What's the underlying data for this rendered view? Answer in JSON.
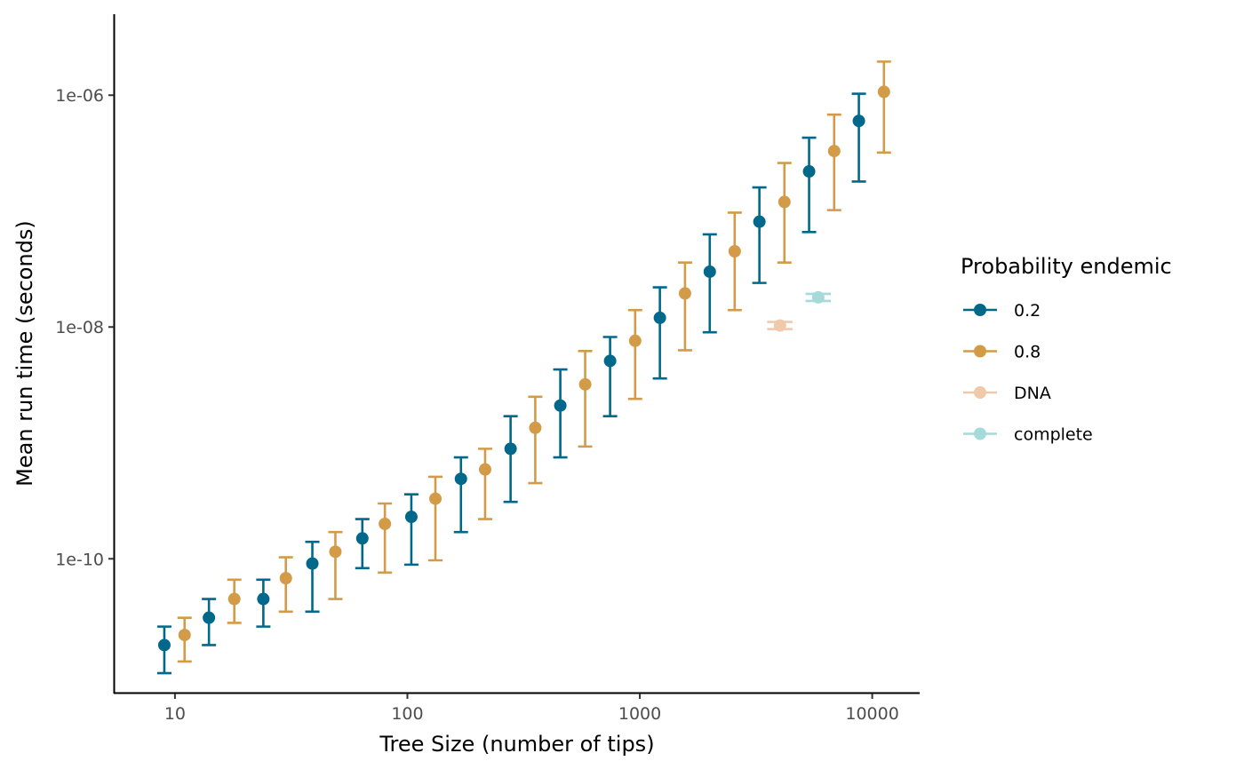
{
  "chart_data": {
    "type": "scatter",
    "title": "",
    "xlabel": "Tree Size (number of tips)",
    "ylabel": "Mean run time (seconds)",
    "x_scale": "log10",
    "y_scale": "log10",
    "xlim": [
      5.5,
      16000
    ],
    "ylim": [
      7e-12,
      5e-06
    ],
    "x_ticks": [
      10,
      100,
      1000,
      10000
    ],
    "x_tick_labels": [
      "10",
      "100",
      "1000",
      "10000"
    ],
    "y_ticks": [
      1e-10,
      1e-08,
      1e-06
    ],
    "y_tick_labels": [
      "1e-10",
      "1e-08",
      "1e-06"
    ],
    "grid": false,
    "legend": {
      "title": "Probability endemic",
      "position": "right",
      "entries": [
        {
          "label": "0.2",
          "color": "#00688B"
        },
        {
          "label": "0.8",
          "color": "#D39B48"
        },
        {
          "label": "DNA",
          "color": "#F0C9AA"
        },
        {
          "label": "complete",
          "color": "#A5DADA"
        }
      ]
    },
    "series": [
      {
        "name": "0.2",
        "color": "#00688B",
        "points": [
          {
            "x": 9,
            "y": 1.8e-11,
            "ymin": 1.03e-11,
            "ymax": 2.6e-11
          },
          {
            "x": 14,
            "y": 3.1e-11,
            "ymin": 1.8e-11,
            "ymax": 4.5e-11
          },
          {
            "x": 24,
            "y": 4.5e-11,
            "ymin": 2.6e-11,
            "ymax": 6.6e-11
          },
          {
            "x": 39,
            "y": 9.1e-11,
            "ymin": 3.5e-11,
            "ymax": 1.4e-10
          },
          {
            "x": 64,
            "y": 1.5e-10,
            "ymin": 8.3e-11,
            "ymax": 2.2e-10
          },
          {
            "x": 104,
            "y": 2.3e-10,
            "ymin": 8.9e-11,
            "ymax": 3.6e-10
          },
          {
            "x": 170,
            "y": 4.9e-10,
            "ymin": 1.7e-10,
            "ymax": 7.5e-10
          },
          {
            "x": 278,
            "y": 8.9e-10,
            "ymin": 3.1e-10,
            "ymax": 1.7e-09
          },
          {
            "x": 455,
            "y": 2.1e-09,
            "ymin": 7.5e-10,
            "ymax": 4.3e-09
          },
          {
            "x": 745,
            "y": 5.1e-09,
            "ymin": 1.7e-09,
            "ymax": 8.2e-09
          },
          {
            "x": 1220,
            "y": 1.2e-08,
            "ymin": 3.6e-09,
            "ymax": 2.2e-08
          },
          {
            "x": 2000,
            "y": 3e-08,
            "ymin": 9e-09,
            "ymax": 6.3e-08
          },
          {
            "x": 3270,
            "y": 8.1e-08,
            "ymin": 2.4e-08,
            "ymax": 1.6e-07
          },
          {
            "x": 5350,
            "y": 2.2e-07,
            "ymin": 6.6e-08,
            "ymax": 4.3e-07
          },
          {
            "x": 8760,
            "y": 6e-07,
            "ymin": 1.8e-07,
            "ymax": 1.03e-06
          }
        ]
      },
      {
        "name": "0.8",
        "color": "#D39B48",
        "points": [
          {
            "x": 11,
            "y": 2.2e-11,
            "ymin": 1.3e-11,
            "ymax": 3.1e-11
          },
          {
            "x": 18,
            "y": 4.5e-11,
            "ymin": 2.8e-11,
            "ymax": 6.6e-11
          },
          {
            "x": 30,
            "y": 6.8e-11,
            "ymin": 3.5e-11,
            "ymax": 1.03e-10
          },
          {
            "x": 49,
            "y": 1.15e-10,
            "ymin": 4.5e-11,
            "ymax": 1.7e-10
          },
          {
            "x": 80,
            "y": 2e-10,
            "ymin": 7.6e-11,
            "ymax": 3e-10
          },
          {
            "x": 132,
            "y": 3.3e-10,
            "ymin": 9.7e-11,
            "ymax": 5.1e-10
          },
          {
            "x": 216,
            "y": 5.9e-10,
            "ymin": 2.2e-10,
            "ymax": 8.9e-10
          },
          {
            "x": 355,
            "y": 1.35e-09,
            "ymin": 4.5e-10,
            "ymax": 2.5e-09
          },
          {
            "x": 582,
            "y": 3.2e-09,
            "ymin": 9.3e-10,
            "ymax": 6.2e-09
          },
          {
            "x": 955,
            "y": 7.6e-09,
            "ymin": 2.4e-09,
            "ymax": 1.4e-08
          },
          {
            "x": 1565,
            "y": 1.95e-08,
            "ymin": 6.3e-09,
            "ymax": 3.6e-08
          },
          {
            "x": 2560,
            "y": 4.5e-08,
            "ymin": 1.4e-08,
            "ymax": 9.7e-08
          },
          {
            "x": 4190,
            "y": 1.2e-07,
            "ymin": 3.6e-08,
            "ymax": 2.6e-07
          },
          {
            "x": 6860,
            "y": 3.3e-07,
            "ymin": 1.02e-07,
            "ymax": 6.8e-07
          },
          {
            "x": 11230,
            "y": 1.07e-06,
            "ymin": 3.2e-07,
            "ymax": 1.95e-06
          }
        ]
      },
      {
        "name": "DNA",
        "color": "#F0C9AA",
        "points": [
          {
            "x": 4010,
            "y": 1.03e-08,
            "xmin": 3530,
            "xmax": 4540
          }
        ]
      },
      {
        "name": "complete",
        "color": "#A5DADA",
        "points": [
          {
            "x": 5860,
            "y": 1.8e-08,
            "xmin": 5160,
            "xmax": 6640
          }
        ]
      }
    ]
  }
}
